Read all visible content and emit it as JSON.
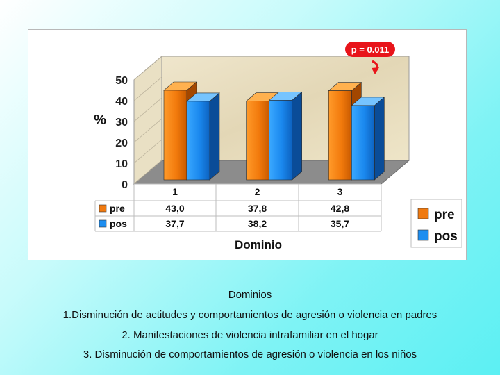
{
  "chart_data": {
    "type": "bar",
    "ylabel": "%",
    "xlabel": "Dominio",
    "ylim": [
      0,
      50
    ],
    "yticks": [
      0,
      10,
      20,
      30,
      40,
      50
    ],
    "categories": [
      "1",
      "2",
      "3"
    ],
    "series": [
      {
        "name": "pre",
        "values": [
          43.0,
          37.8,
          42.8
        ],
        "labels": [
          "43,0",
          "37,8",
          "42,8"
        ],
        "color": "#f07a10"
      },
      {
        "name": "pos",
        "values": [
          37.7,
          38.2,
          35.7
        ],
        "labels": [
          "37,7",
          "38,2",
          "35,7"
        ],
        "color": "#1e8ef0"
      }
    ],
    "annotation": {
      "text": "p = 0.011",
      "color": "#e8141a"
    },
    "legend": [
      "pre",
      "pos"
    ],
    "legend_position": "right",
    "style": "3d-bars-with-data-table",
    "back_wall_color": "#e6dcc0",
    "floor_color": "#8c8c8c"
  },
  "captions": {
    "title": "Dominios",
    "items": [
      "1.Disminución de actitudes y comportamientos de agresión o violencia en padres",
      "2. Manifestaciones de violencia intrafamiliar en el hogar",
      "3. Disminución de comportamientos de agresión o violencia en los niños"
    ]
  }
}
